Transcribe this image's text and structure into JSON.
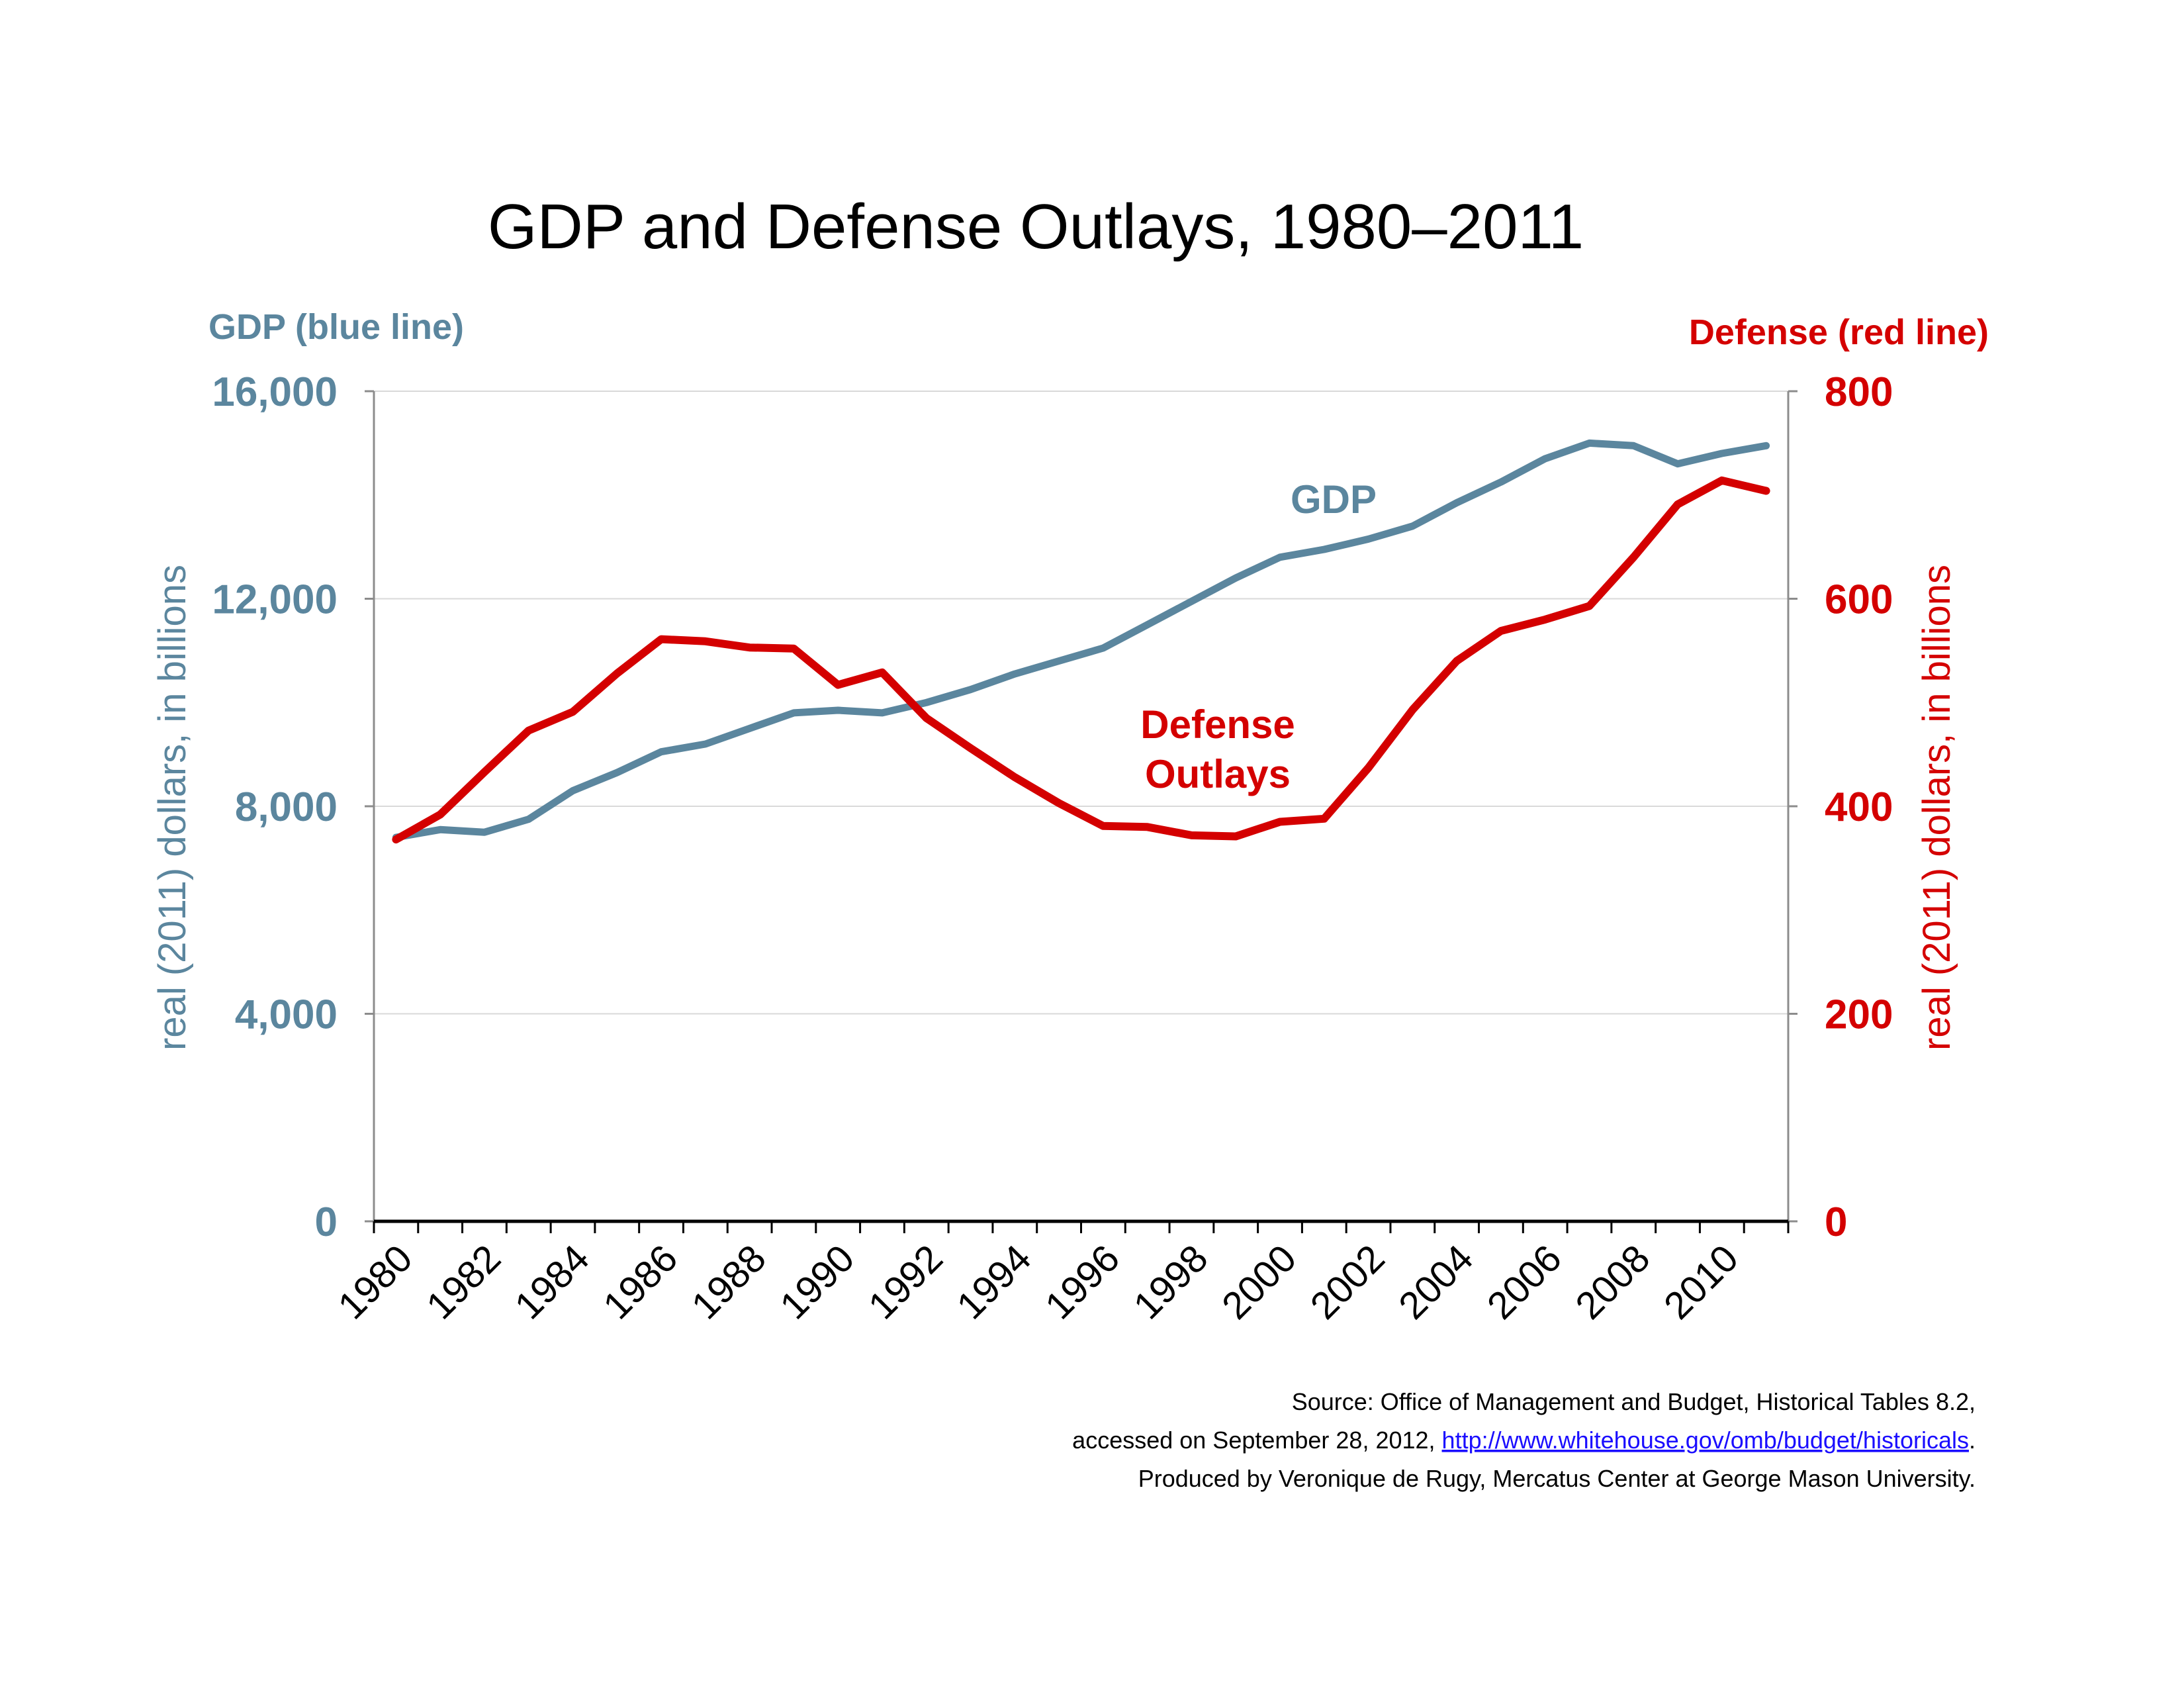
{
  "chart_data": {
    "type": "line",
    "title": "GDP and Defense Outlays, 1980–2011",
    "left_axis": {
      "header": "GDP (blue line)",
      "label": "real (2011) dollars, in billions",
      "ticks": [
        "0",
        "4,000",
        "8,000",
        "12,000",
        "16,000"
      ],
      "ylim": [
        0,
        16000
      ],
      "color": "#5b869e"
    },
    "right_axis": {
      "header": "Defense (red line)",
      "label": "real (2011) dollars, in billions",
      "ticks": [
        "0",
        "200",
        "400",
        "600",
        "800"
      ],
      "ylim": [
        0,
        800
      ],
      "color": "#d40000"
    },
    "x_tick_labels": [
      "1980",
      "1982",
      "1984",
      "1986",
      "1988",
      "1990",
      "1992",
      "1994",
      "1996",
      "1998",
      "2000",
      "2002",
      "2004",
      "2006",
      "2008",
      "2010"
    ],
    "x": [
      1980,
      1981,
      1982,
      1983,
      1984,
      1985,
      1986,
      1987,
      1988,
      1989,
      1990,
      1991,
      1992,
      1993,
      1994,
      1995,
      1996,
      1997,
      1998,
      1999,
      2000,
      2001,
      2002,
      2003,
      2004,
      2005,
      2006,
      2007,
      2008,
      2009,
      2010,
      2011
    ],
    "series": [
      {
        "name": "GDP",
        "axis": "left",
        "color": "#5b869e",
        "values": [
          7400,
          7550,
          7500,
          7750,
          8300,
          8650,
          9050,
          9200,
          9500,
          9800,
          9850,
          9800,
          10000,
          10250,
          10550,
          10800,
          11050,
          11500,
          11950,
          12400,
          12800,
          12950,
          13150,
          13400,
          13850,
          14250,
          14700,
          15000,
          14950,
          14600,
          14800,
          14950
        ]
      },
      {
        "name": "Defense Outlays",
        "axis": "right",
        "color": "#d40000",
        "values": [
          368,
          392,
          433,
          473,
          491,
          528,
          561,
          559,
          553,
          552,
          517,
          529,
          485,
          456,
          428,
          403,
          381,
          380,
          372,
          371,
          385,
          388,
          437,
          493,
          540,
          569,
          580,
          593,
          640,
          691,
          714,
          704
        ]
      }
    ],
    "annotations": [
      "GDP",
      "Defense",
      "Outlays"
    ],
    "grid": true
  },
  "source": {
    "line1": "Source: Office of Management and Budget, Historical Tables 8.2,",
    "line2_prefix": "accessed on September 28, 2012, ",
    "line2_link": "http://www.whitehouse.gov/omb/budget/historicals",
    "line2_suffix": ".",
    "line3": "Produced by Veronique de Rugy, Mercatus Center at George Mason University."
  }
}
